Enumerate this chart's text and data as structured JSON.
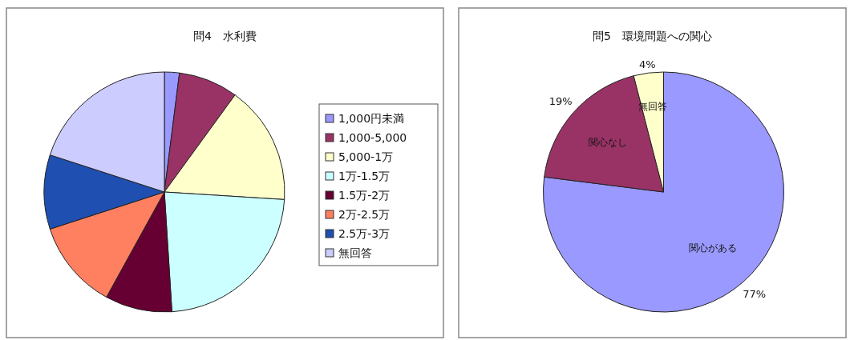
{
  "chart_data": [
    {
      "type": "pie",
      "title": "問4　水利費",
      "categories": [
        "1,000円未満",
        "1,000-5,000",
        "5,000-1万",
        "1万-1.5万",
        "1.5万-2万",
        "2万-2.5万",
        "2.5万-3万",
        "無回答"
      ],
      "values": [
        2,
        8,
        16,
        23,
        9,
        12,
        10,
        20
      ],
      "colors": [
        "#9999ff",
        "#993366",
        "#ffffcc",
        "#ccffff",
        "#660033",
        "#ff8060",
        "#1f4fb0",
        "#ccccff"
      ],
      "legend": "right"
    },
    {
      "type": "pie",
      "title": "問5　環境問題への関心",
      "categories": [
        "関心がある",
        "関心なし",
        "無回答"
      ],
      "values": [
        77,
        19,
        4
      ],
      "colors": [
        "#9999ff",
        "#993366",
        "#ffffcc"
      ],
      "value_labels": [
        "77%",
        "19%",
        "4%"
      ],
      "legend": false
    }
  ]
}
